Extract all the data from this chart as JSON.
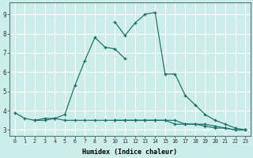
{
  "xlabel": "Humidex (Indice chaleur)",
  "background_color": "#cceee8",
  "grid_color": "#ffffff",
  "line_color": "#1a6e65",
  "xlim": [
    -0.5,
    23.5
  ],
  "ylim": [
    2.7,
    9.6
  ],
  "xticks": [
    0,
    1,
    2,
    3,
    4,
    5,
    6,
    7,
    8,
    9,
    10,
    11,
    12,
    13,
    14,
    15,
    16,
    17,
    18,
    19,
    20,
    21,
    22,
    23
  ],
  "yticks": [
    3,
    4,
    5,
    6,
    7,
    8,
    9
  ],
  "series": [
    {
      "x": [
        0,
        1,
        2,
        3,
        4,
        5,
        6,
        7,
        8,
        9,
        10,
        11
      ],
      "y": [
        3.9,
        3.6,
        3.5,
        3.6,
        3.6,
        3.8,
        5.3,
        6.6,
        7.8,
        7.3,
        7.2,
        6.7
      ]
    },
    {
      "x": [
        10,
        11,
        12,
        13,
        14,
        15,
        16,
        17,
        18,
        19,
        20,
        21,
        22,
        23
      ],
      "y": [
        8.6,
        7.9,
        8.55,
        9.0,
        9.1,
        5.9,
        5.9,
        4.8,
        4.3,
        3.8,
        3.5,
        3.3,
        3.1,
        3.0
      ]
    },
    {
      "x": [
        2,
        3,
        4,
        5,
        6,
        7,
        8,
        9,
        10,
        11,
        12,
        13,
        14,
        15,
        16,
        17,
        18,
        19,
        20,
        21,
        22,
        23
      ],
      "y": [
        3.5,
        3.5,
        3.6,
        3.5,
        3.5,
        3.5,
        3.5,
        3.5,
        3.5,
        3.5,
        3.5,
        3.5,
        3.5,
        3.5,
        3.3,
        3.3,
        3.3,
        3.2,
        3.1,
        3.1,
        3.0,
        3.0
      ]
    },
    {
      "x": [
        10,
        11,
        12,
        13,
        14,
        15,
        16,
        17,
        18,
        19,
        20,
        21,
        22,
        23
      ],
      "y": [
        3.5,
        3.5,
        3.5,
        3.5,
        3.5,
        3.5,
        3.5,
        3.3,
        3.3,
        3.3,
        3.2,
        3.1,
        3.0,
        3.0
      ]
    }
  ]
}
